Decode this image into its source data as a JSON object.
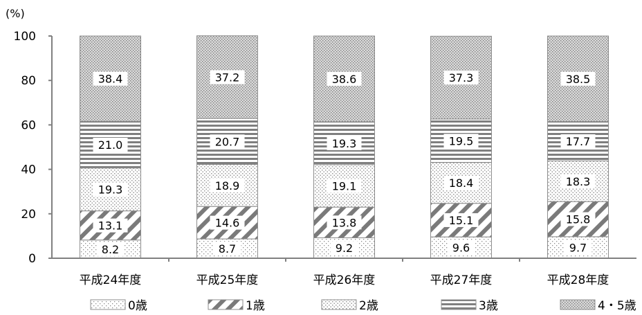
{
  "chart_data": {
    "type": "bar",
    "stacked": true,
    "unit_label": "(%)",
    "ylim": [
      0,
      100
    ],
    "yticks": [
      "0",
      "20",
      "40",
      "60",
      "80",
      "100"
    ],
    "categories": [
      "平成24年度",
      "平成25年度",
      "平成26年度",
      "平成27年度",
      "平成28年度"
    ],
    "series": [
      {
        "name": "0歳",
        "pattern": "pat-fine-dots",
        "values": [
          8.2,
          8.7,
          9.2,
          9.6,
          9.7
        ],
        "labels": [
          "8.2",
          "8.7",
          "9.2",
          "9.6",
          "9.7"
        ]
      },
      {
        "name": "1歳",
        "pattern": "pat-diagonal",
        "values": [
          13.1,
          14.6,
          13.8,
          15.1,
          15.8
        ],
        "labels": [
          "13.1",
          "14.6",
          "13.8",
          "15.1",
          "15.8"
        ]
      },
      {
        "name": "2歳",
        "pattern": "pat-dots",
        "values": [
          19.3,
          18.9,
          19.1,
          18.4,
          18.3
        ],
        "labels": [
          "19.3",
          "18.9",
          "19.1",
          "18.4",
          "18.3"
        ]
      },
      {
        "name": "3歳",
        "pattern": "pat-horizontal",
        "values": [
          21.0,
          20.7,
          19.3,
          19.5,
          17.7
        ],
        "labels": [
          "21.0",
          "20.7",
          "19.3",
          "19.5",
          "17.7"
        ]
      },
      {
        "name": "4・5歳",
        "pattern": "pat-dense-dots",
        "values": [
          38.4,
          37.2,
          38.6,
          37.3,
          38.5
        ],
        "labels": [
          "38.4",
          "37.2",
          "38.6",
          "37.3",
          "38.5"
        ]
      }
    ],
    "grid": false,
    "legend_position": "bottom"
  }
}
